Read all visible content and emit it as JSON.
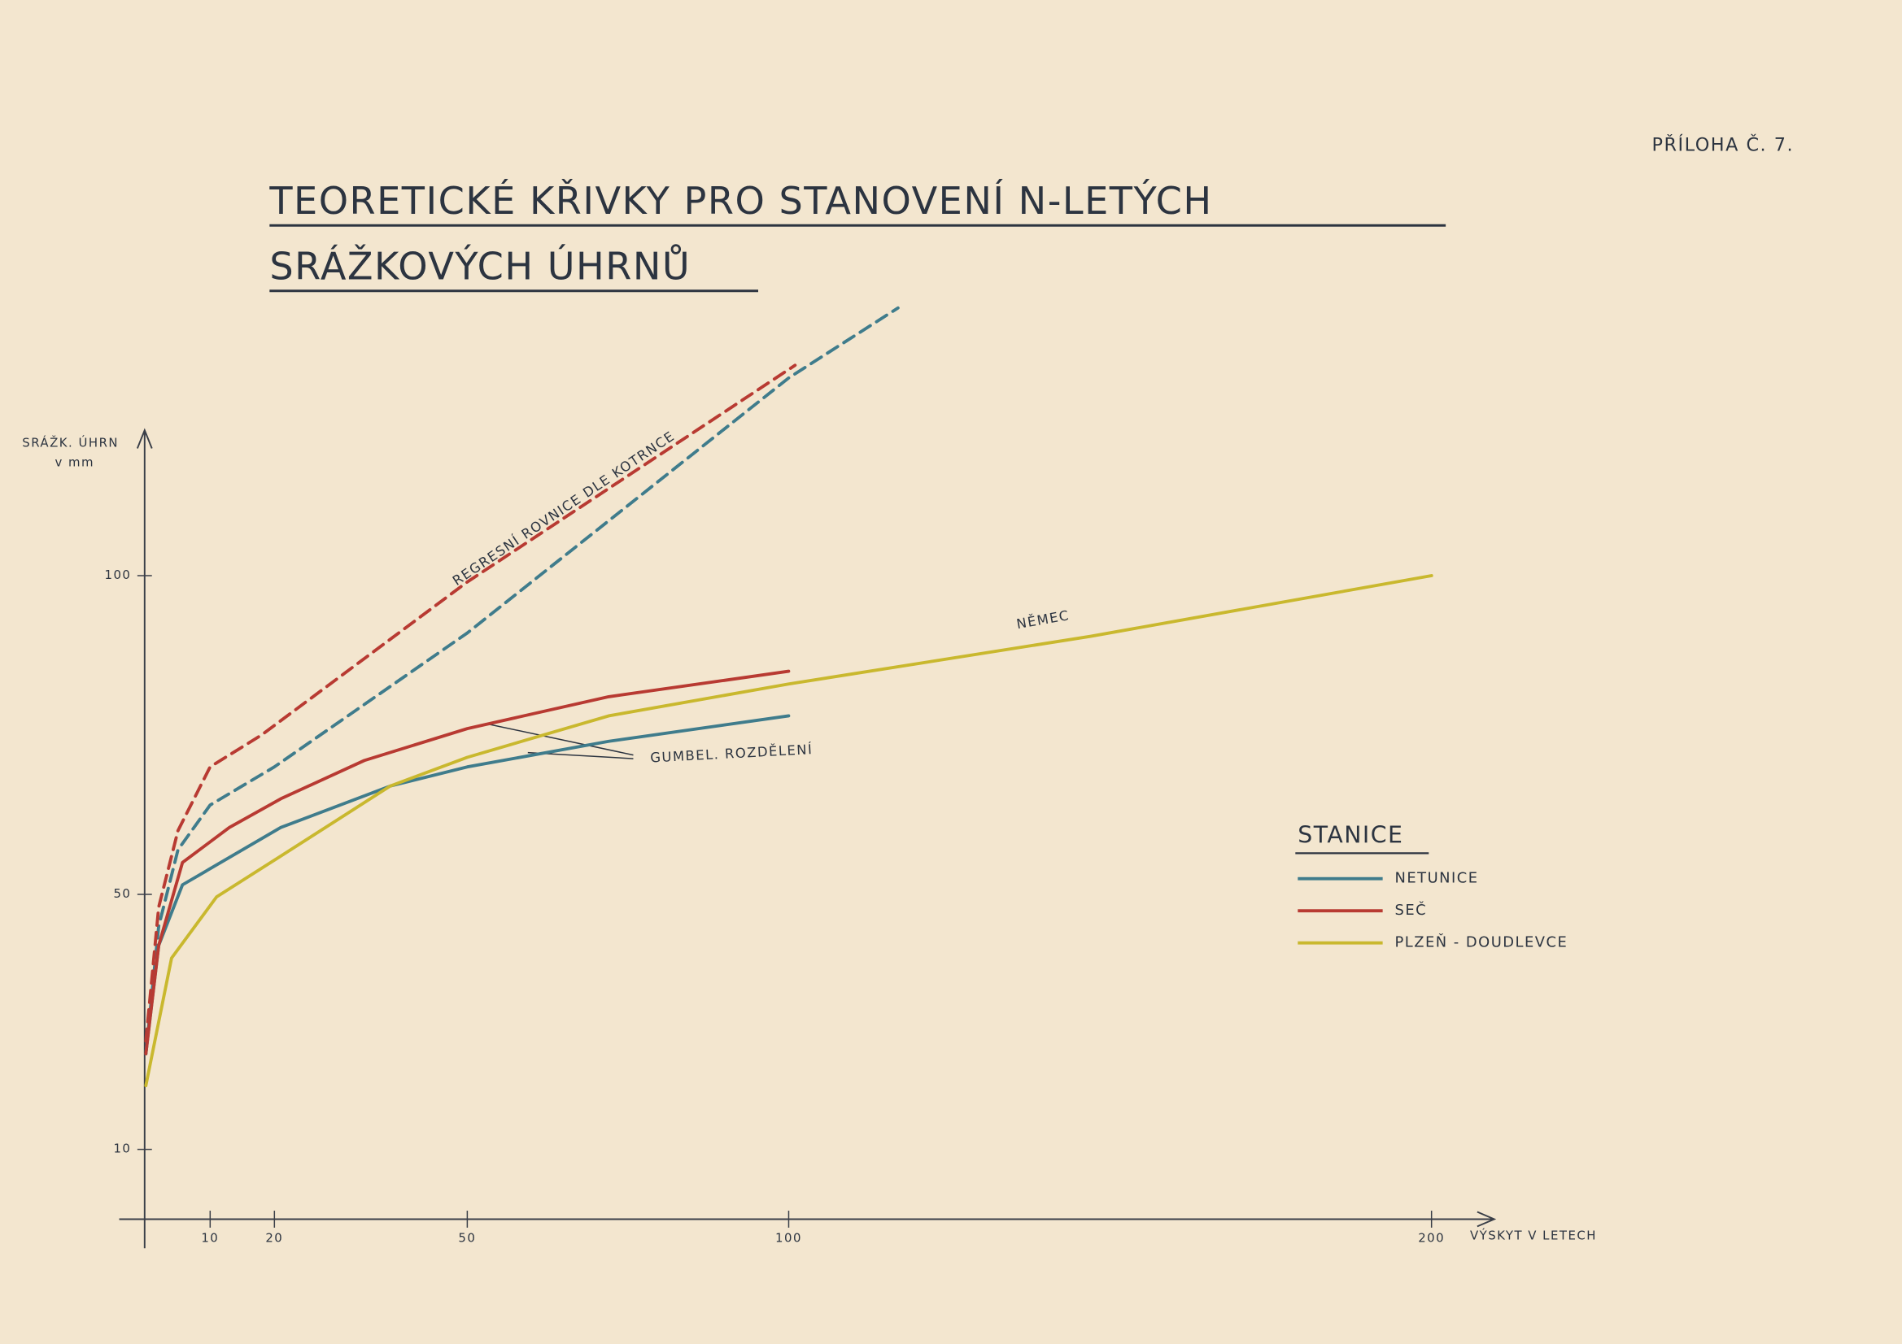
{
  "chart_data": {
    "type": "line",
    "title_lines": [
      "TEORETICKÉ KŘIVKY PRO STANOVENÍ N-LETÝCH",
      "SRÁŽKOVÝCH ÚHRNŮ"
    ],
    "appendix": "PŘÍLOHA Č. 7.",
    "y_label_lines": [
      "SRÁŽK. ÚHRN",
      "v mm"
    ],
    "x_label": "VÝSKYT V LETECH",
    "xlim": [
      0,
      209
    ],
    "ylim": [
      0,
      123
    ],
    "xticks": [
      10,
      20,
      50,
      100,
      200
    ],
    "yticks": [
      10,
      50,
      100
    ],
    "legend_title": "STANICE",
    "series": [
      {
        "name": "NETUNICE",
        "color": "#3f7c8c",
        "x": [
          0,
          2,
          5.7,
          21,
          38,
          50,
          72,
          100
        ],
        "values": [
          25,
          42,
          51.5,
          60.5,
          67,
          70,
          74,
          78
        ]
      },
      {
        "name": "SEČ",
        "color": "#b83a32",
        "x": [
          0,
          2,
          5.7,
          13,
          21,
          34,
          50,
          72,
          100
        ],
        "values": [
          25,
          42,
          55,
          60.5,
          65,
          71,
          76,
          81,
          85
        ]
      },
      {
        "name": "PLZEŇ - DOUDLEVCE",
        "color": "#c9b82e",
        "x": [
          0,
          4,
          11,
          21,
          38,
          50,
          72,
          100,
          147,
          200
        ],
        "values": [
          20,
          40,
          49.6,
          56,
          67,
          71.5,
          78,
          83,
          90.5,
          100
        ]
      }
    ],
    "regression_series": [
      {
        "color": "#3f7c8c",
        "x": [
          0,
          2,
          5,
          10,
          20,
          50,
          100,
          117
        ],
        "values": [
          25,
          45,
          57,
          64,
          70,
          91,
          131,
          142
        ]
      },
      {
        "color": "#b83a32",
        "x": [
          0,
          2,
          5,
          10,
          18,
          50,
          101
        ],
        "values": [
          27,
          48,
          60,
          70,
          75,
          99,
          133
        ]
      }
    ],
    "annotations": [
      "REGRESNÍ ROVNICE DLE KOTRNCE",
      "NĚMEC",
      "GUMBEL. ROZDĚLENÍ"
    ]
  }
}
